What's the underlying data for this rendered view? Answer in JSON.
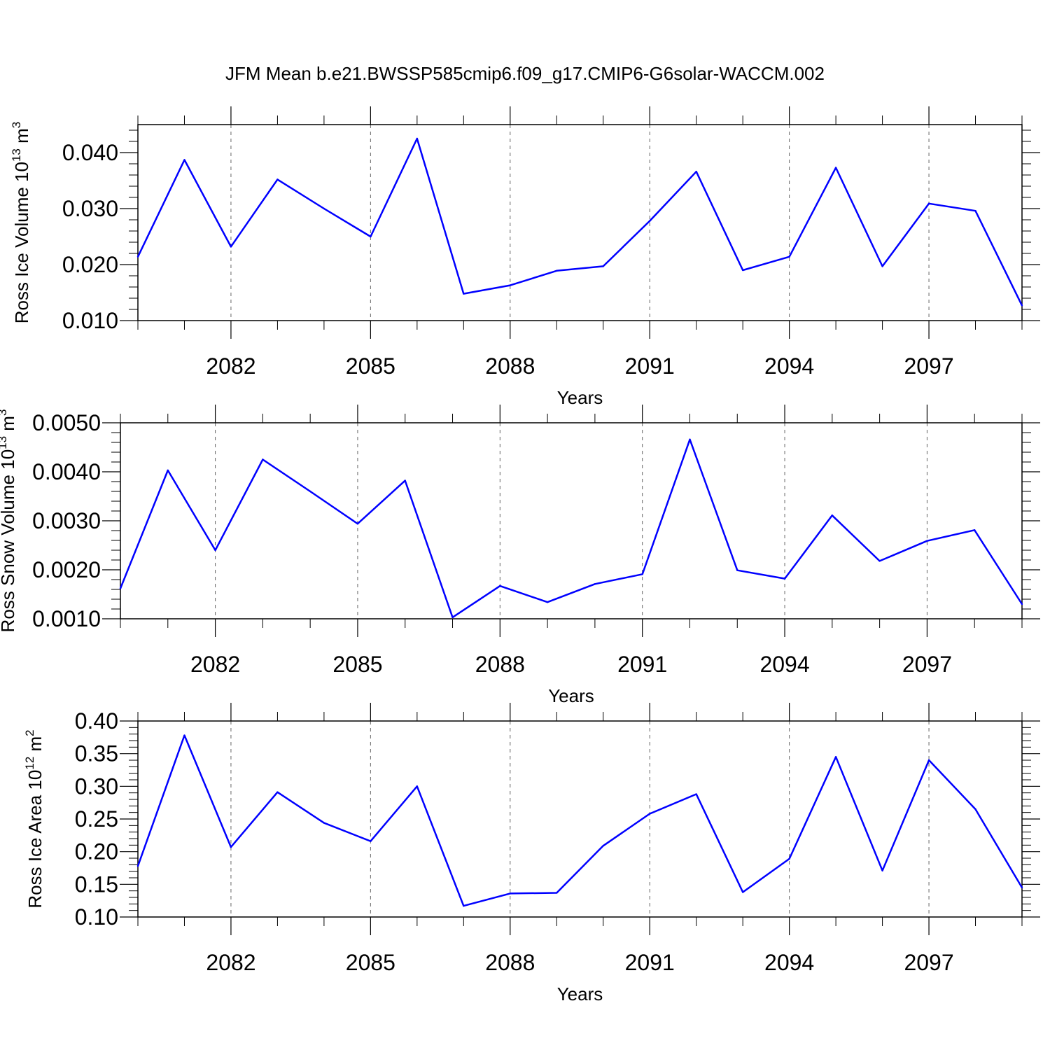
{
  "title": "JFM Mean b.e21.BWSSP585cmip6.f09_g17.CMIP6-G6solar-WACCM.002",
  "colors": {
    "series": "#0000ff",
    "axis": "#000000",
    "grid": "#666666"
  },
  "chart_data": [
    {
      "type": "line",
      "xlabel": "Years",
      "ylabel": "Ross Ice Volume 10",
      "ylabel_exp": "13",
      "ylabel_unit": " m",
      "ylabel_unit_exp": "3",
      "xlim": [
        2080,
        2099
      ],
      "ylim": [
        0.01,
        0.045
      ],
      "xticks": [
        2082,
        2085,
        2088,
        2091,
        2094,
        2097
      ],
      "yticks": [
        0.01,
        0.02,
        0.03,
        0.04
      ],
      "ytick_labels": [
        "0.010",
        "0.020",
        "0.030",
        "0.040"
      ],
      "grid": "x dashed at major ticks",
      "x": [
        2080,
        2081,
        2082,
        2083,
        2084,
        2085,
        2086,
        2087,
        2088,
        2089,
        2090,
        2091,
        2092,
        2093,
        2094,
        2095,
        2096,
        2097,
        2098,
        2099
      ],
      "values": [
        0.0214,
        0.0387,
        0.0232,
        0.0352,
        0.03,
        0.025,
        0.0425,
        0.0148,
        0.0163,
        0.0189,
        0.0197,
        0.0278,
        0.0366,
        0.019,
        0.0214,
        0.0373,
        0.0197,
        0.0309,
        0.0296,
        0.0127
      ]
    },
    {
      "type": "line",
      "xlabel": "Years",
      "ylabel": "Ross Snow Volume 10",
      "ylabel_exp": "13",
      "ylabel_unit": " m",
      "ylabel_unit_exp": "3",
      "xlim": [
        2080,
        2099
      ],
      "ylim": [
        0.001,
        0.005
      ],
      "xticks": [
        2082,
        2085,
        2088,
        2091,
        2094,
        2097
      ],
      "yticks": [
        0.001,
        0.002,
        0.003,
        0.004,
        0.005
      ],
      "ytick_labels": [
        "0.0010",
        "0.0020",
        "0.0030",
        "0.0040",
        "0.0050"
      ],
      "grid": "x dashed at major ticks",
      "x": [
        2080,
        2081,
        2082,
        2083,
        2084,
        2085,
        2086,
        2087,
        2088,
        2089,
        2090,
        2091,
        2092,
        2093,
        2094,
        2095,
        2096,
        2097,
        2098,
        2099
      ],
      "values": [
        0.00162,
        0.00403,
        0.0024,
        0.00425,
        0.0036,
        0.00294,
        0.00382,
        0.00103,
        0.00167,
        0.00134,
        0.00171,
        0.00191,
        0.00466,
        0.00199,
        0.00182,
        0.00311,
        0.00218,
        0.00259,
        0.00281,
        0.0013
      ]
    },
    {
      "type": "line",
      "xlabel": "Years",
      "ylabel": "Ross Ice Area 10",
      "ylabel_exp": "12",
      "ylabel_unit": " m",
      "ylabel_unit_exp": "2",
      "xlim": [
        2080,
        2099
      ],
      "ylim": [
        0.1,
        0.4
      ],
      "xticks": [
        2082,
        2085,
        2088,
        2091,
        2094,
        2097
      ],
      "yticks": [
        0.1,
        0.15,
        0.2,
        0.25,
        0.3,
        0.35,
        0.4
      ],
      "ytick_labels": [
        "0.10",
        "0.15",
        "0.20",
        "0.25",
        "0.30",
        "0.35",
        "0.40"
      ],
      "grid": "x dashed at major ticks",
      "x": [
        2080,
        2081,
        2082,
        2083,
        2084,
        2085,
        2086,
        2087,
        2088,
        2089,
        2090,
        2091,
        2092,
        2093,
        2094,
        2095,
        2096,
        2097,
        2098,
        2099
      ],
      "values": [
        0.178,
        0.378,
        0.207,
        0.291,
        0.244,
        0.216,
        0.3,
        0.117,
        0.136,
        0.137,
        0.209,
        0.258,
        0.288,
        0.138,
        0.189,
        0.345,
        0.171,
        0.34,
        0.265,
        0.145
      ]
    }
  ]
}
